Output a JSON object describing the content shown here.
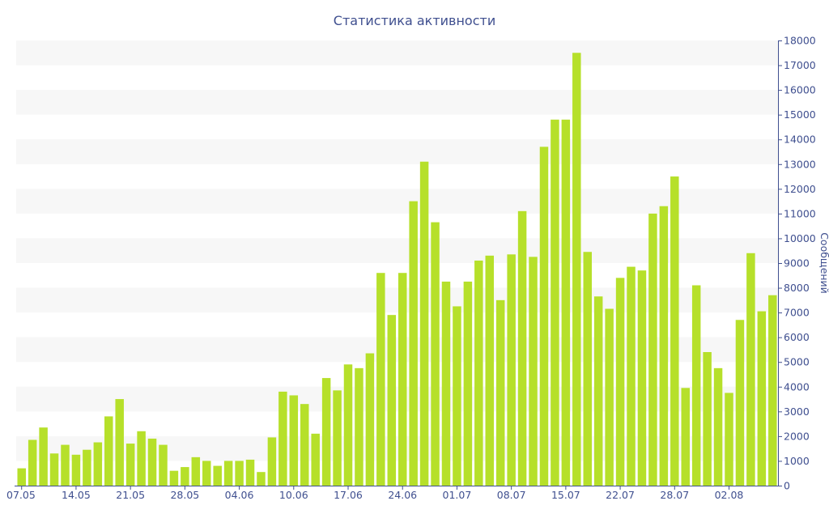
{
  "chart_data": {
    "type": "bar",
    "title": "Статистика активности",
    "xlabel": "",
    "ylabel": "Сообщений",
    "ylim": [
      0,
      18000
    ],
    "yticks": [
      0,
      1000,
      2000,
      3000,
      4000,
      5000,
      6000,
      7000,
      8000,
      9000,
      10000,
      11000,
      12000,
      13000,
      14000,
      15000,
      16000,
      17000,
      18000
    ],
    "y_axis_position": "right",
    "grid": "alternating horizontal bands",
    "legend": "none",
    "x_tick_labels": [
      {
        "label": "07.05",
        "index": 0
      },
      {
        "label": "14.05",
        "index": 5
      },
      {
        "label": "21.05",
        "index": 10
      },
      {
        "label": "28.05",
        "index": 15
      },
      {
        "label": "04.06",
        "index": 20
      },
      {
        "label": "10.06",
        "index": 25
      },
      {
        "label": "17.06",
        "index": 30
      },
      {
        "label": "24.06",
        "index": 35
      },
      {
        "label": "01.07",
        "index": 40
      },
      {
        "label": "08.07",
        "index": 45
      },
      {
        "label": "15.07",
        "index": 50
      },
      {
        "label": "22.07",
        "index": 55
      },
      {
        "label": "28.07",
        "index": 60
      },
      {
        "label": "02.08",
        "index": 65
      }
    ],
    "values": [
      700,
      1850,
      2350,
      1300,
      1650,
      1250,
      1450,
      1750,
      2800,
      3500,
      1700,
      2200,
      1900,
      1650,
      600,
      750,
      1150,
      1000,
      800,
      1000,
      1000,
      1050,
      550,
      1950,
      3800,
      3650,
      3300,
      2100,
      4350,
      3850,
      4900,
      4750,
      5350,
      8600,
      6900,
      8600,
      11500,
      13100,
      10650,
      8250,
      7250,
      8250,
      9100,
      9300,
      7500,
      9350,
      11100,
      9250,
      13700,
      14800,
      14800,
      17500,
      9450,
      7650,
      7150,
      8400,
      8850,
      8700,
      11000,
      11300,
      12500,
      3950,
      8100,
      5400,
      4750,
      3750,
      6700,
      9400,
      7050,
      7700
    ],
    "colors": {
      "bar": "#b6e02a",
      "band": "#f7f7f7",
      "axis": "#3f4f8f",
      "text": "#3f4f8f"
    }
  }
}
